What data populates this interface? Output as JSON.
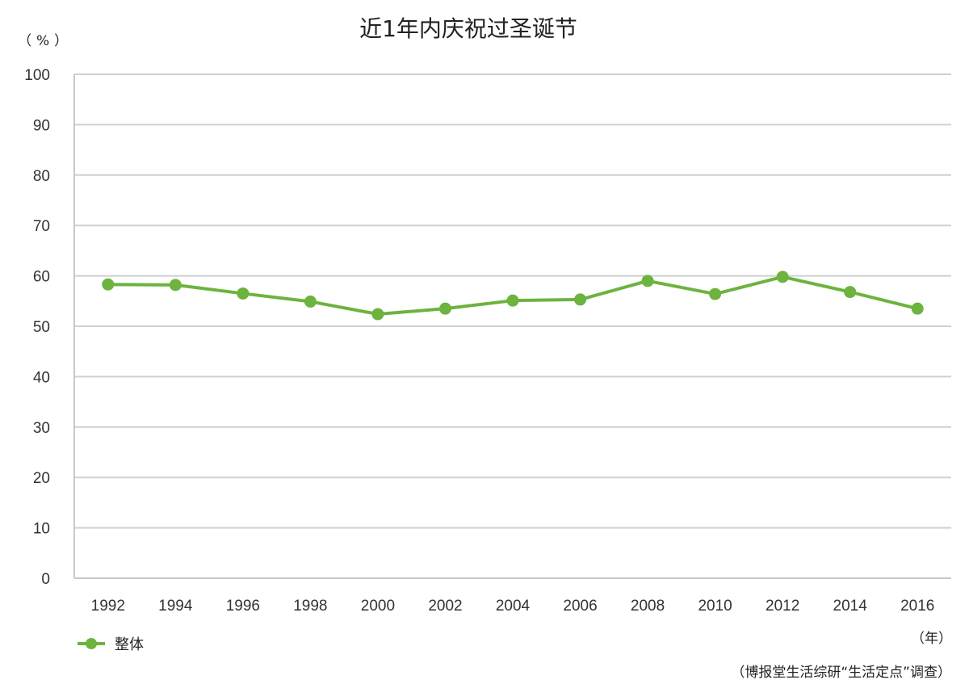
{
  "chart_data": {
    "type": "line",
    "title": "近1年内庆祝过圣诞节",
    "ylabel": "（%）",
    "xlabel": "（年）",
    "source": "（博报堂生活综研“生活定点”调查）",
    "ylim": [
      0,
      100
    ],
    "yticks": [
      0,
      10,
      20,
      30,
      40,
      50,
      60,
      70,
      80,
      90,
      100
    ],
    "grid": true,
    "legend_position": "bottom-left",
    "categories": [
      "1992",
      "1994",
      "1996",
      "1998",
      "2000",
      "2002",
      "2004",
      "2006",
      "2008",
      "2010",
      "2012",
      "2014",
      "2016"
    ],
    "series": [
      {
        "name": "整体",
        "color": "#6db33f",
        "values": [
          58.3,
          58.2,
          56.5,
          54.9,
          52.4,
          53.5,
          55.1,
          55.3,
          59.0,
          56.4,
          59.8,
          56.8,
          53.5
        ]
      }
    ]
  }
}
